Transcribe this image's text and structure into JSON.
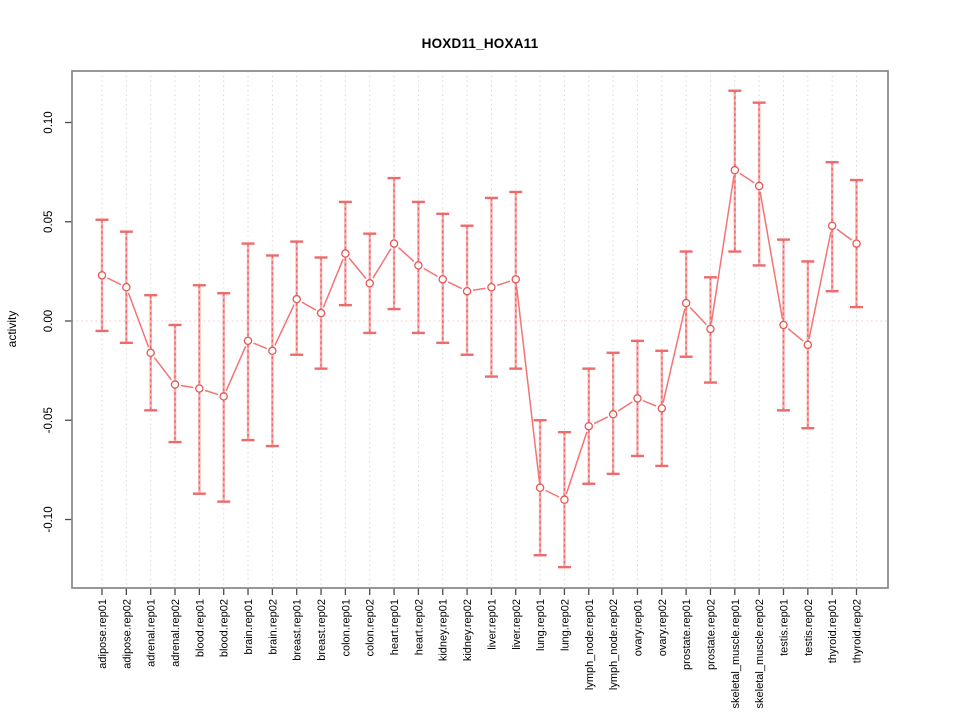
{
  "title": "HOXD11_HOXA11",
  "chart_data": {
    "type": "line",
    "title": "HOXD11_HOXA11",
    "xlabel": "",
    "ylabel": "activity",
    "ylim": [
      -0.134,
      0.127
    ],
    "yticks": [
      0.1,
      0.05,
      0.0,
      -0.05,
      -0.1
    ],
    "ytick_labels": [
      "0.10",
      "0.05",
      "0.00",
      "-0.05",
      "-0.10"
    ],
    "grid": "vertical dotted gridline at every category",
    "zero_reference_line": true,
    "legend_position": "none",
    "categories": [
      "adipose.rep01",
      "adipose.rep02",
      "adrenal.rep01",
      "adrenal.rep02",
      "blood.rep01",
      "blood.rep02",
      "brain.rep01",
      "brain.rep02",
      "breast.rep01",
      "breast.rep02",
      "colon.rep01",
      "colon.rep02",
      "heart.rep01",
      "heart.rep02",
      "kidney.rep01",
      "kidney.rep02",
      "liver.rep01",
      "liver.rep02",
      "lung.rep01",
      "lung.rep02",
      "lymph_node.rep01",
      "lymph_node.rep02",
      "ovary.rep01",
      "ovary.rep02",
      "prostate.rep01",
      "prostate.rep02",
      "skeletal_muscle.rep01",
      "skeletal_muscle.rep02",
      "testis.rep01",
      "testis.rep02",
      "thyroid.rep01",
      "thyroid.rep02"
    ],
    "series": [
      {
        "name": "activity",
        "values": [
          0.023,
          0.017,
          -0.016,
          -0.032,
          -0.034,
          -0.038,
          -0.01,
          -0.015,
          0.011,
          0.004,
          0.034,
          0.019,
          0.039,
          0.028,
          0.021,
          0.015,
          0.017,
          0.021,
          -0.084,
          -0.09,
          -0.053,
          -0.047,
          -0.039,
          -0.044,
          0.009,
          -0.004,
          0.076,
          0.068,
          -0.002,
          -0.012,
          0.048,
          0.039
        ],
        "error_low": [
          -0.005,
          -0.011,
          -0.045,
          -0.061,
          -0.087,
          -0.091,
          -0.06,
          -0.063,
          -0.017,
          -0.024,
          0.008,
          -0.006,
          0.006,
          -0.006,
          -0.011,
          -0.017,
          -0.028,
          -0.024,
          -0.118,
          -0.124,
          -0.082,
          -0.077,
          -0.068,
          -0.073,
          -0.018,
          -0.031,
          0.035,
          0.028,
          -0.045,
          -0.054,
          0.015,
          0.007
        ],
        "error_high": [
          0.051,
          0.045,
          0.013,
          -0.002,
          0.018,
          0.014,
          0.039,
          0.033,
          0.04,
          0.032,
          0.06,
          0.044,
          0.072,
          0.06,
          0.054,
          0.048,
          0.062,
          0.065,
          -0.05,
          -0.056,
          -0.024,
          -0.016,
          -0.01,
          -0.015,
          0.035,
          0.022,
          0.116,
          0.11,
          0.041,
          0.03,
          0.08,
          0.071
        ]
      }
    ]
  },
  "colors": {
    "plot_border": "#878787",
    "tick_mark": "#4a4a4a",
    "grid_line": "#d9d9d9",
    "zero_line": "#fccfcf",
    "bar_shaft_pink": "#f7a3a3",
    "bar_dash_red": "#ed5e5e",
    "bar_cap": "#ee6b6b",
    "point_stroke": "#e85555",
    "connector": "#f47474",
    "text": "#000000"
  }
}
